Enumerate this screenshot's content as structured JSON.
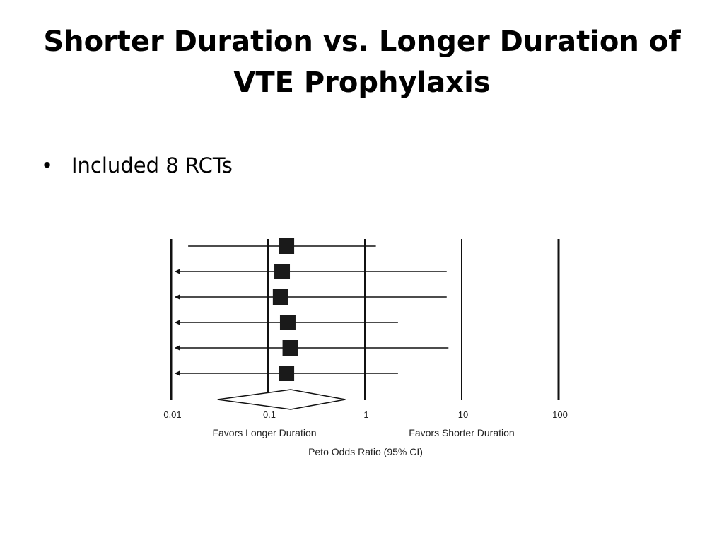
{
  "slide": {
    "title_lines": [
      "Shorter Duration vs. Longer Duration of",
      "VTE Prophylaxis"
    ],
    "bullets": [
      {
        "bullet": "•",
        "text": "Included 8 RCTs"
      }
    ]
  },
  "chart_data": {
    "type": "forest",
    "scale": "log",
    "xlim": [
      0.01,
      100
    ],
    "ticks": [
      {
        "value": 0.01,
        "label": "0.01"
      },
      {
        "value": 0.1,
        "label": "0.1"
      },
      {
        "value": 1,
        "label": "1"
      },
      {
        "value": 10,
        "label": "10"
      },
      {
        "value": 100,
        "label": "100"
      }
    ],
    "xlabel": "Peto Odds Ratio (95% CI)",
    "favors_left": "Favors Longer Duration",
    "favors_right": "Favors Shorter Duration",
    "studies": [
      {
        "estimate": 0.155,
        "lower": 0.015,
        "upper": 1.3,
        "lower_truncated": false
      },
      {
        "estimate": 0.14,
        "lower": 0.01,
        "upper": 7.0,
        "lower_truncated": true
      },
      {
        "estimate": 0.135,
        "lower": 0.01,
        "upper": 7.0,
        "lower_truncated": true
      },
      {
        "estimate": 0.16,
        "lower": 0.01,
        "upper": 2.2,
        "lower_truncated": true
      },
      {
        "estimate": 0.17,
        "lower": 0.01,
        "upper": 7.3,
        "lower_truncated": true
      },
      {
        "estimate": 0.155,
        "lower": 0.01,
        "upper": 2.2,
        "lower_truncated": true
      }
    ],
    "pooled": {
      "estimate": 0.15,
      "lower": 0.05,
      "upper": 0.45
    },
    "colors": {
      "line": "#111111",
      "marker": "#1a1a1a",
      "text": "#222222"
    }
  }
}
